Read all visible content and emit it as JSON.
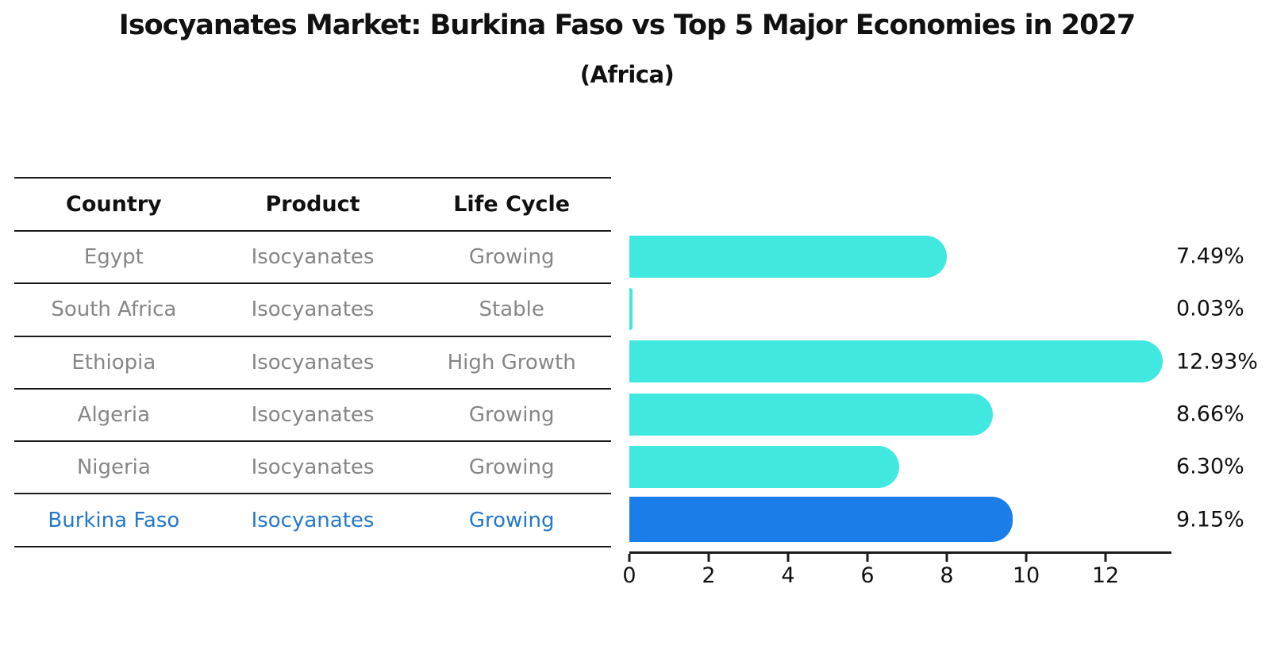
{
  "title": "Isocyanates Market: Burkina Faso vs Top 5 Major Economies in 2027",
  "subtitle": "(Africa)",
  "table": {
    "headers": [
      "Country",
      "Product",
      "Life Cycle"
    ],
    "rows": [
      {
        "country": "Egypt",
        "product": "Isocyanates",
        "life_cycle": "Growing"
      },
      {
        "country": "South Africa",
        "product": "Isocyanates",
        "life_cycle": "Stable"
      },
      {
        "country": "Ethiopia",
        "product": "Isocyanates",
        "life_cycle": "High Growth"
      },
      {
        "country": "Algeria",
        "product": "Isocyanates",
        "life_cycle": "Growing"
      },
      {
        "country": "Nigeria",
        "product": "Isocyanates",
        "life_cycle": "Growing"
      },
      {
        "country": "Burkina Faso",
        "product": "Isocyanates",
        "life_cycle": "Growing"
      }
    ]
  },
  "chart_data": {
    "type": "bar",
    "orientation": "horizontal",
    "title": "Isocyanates Market: Burkina Faso vs Top 5 Major Economies in 2027 (Africa)",
    "categories": [
      "Egypt",
      "South Africa",
      "Ethiopia",
      "Algeria",
      "Nigeria",
      "Burkina Faso"
    ],
    "values": [
      7.49,
      0.03,
      12.93,
      8.66,
      6.3,
      9.15
    ],
    "value_labels": [
      "7.49%",
      "0.03%",
      "12.93%",
      "8.66%",
      "6.30%",
      "9.15%"
    ],
    "xticks": [
      "0",
      "2",
      "4",
      "6",
      "8",
      "10",
      "12"
    ],
    "xtick_values": [
      0,
      2,
      4,
      6,
      8,
      10,
      12
    ],
    "xlim": [
      0,
      13.66
    ],
    "grid": false,
    "legend": false,
    "bar_color": "#40E8E0",
    "highlight_index": 5,
    "highlight_bar_color": "#1B7EE8",
    "highlight_text_color": "#2578C8"
  }
}
